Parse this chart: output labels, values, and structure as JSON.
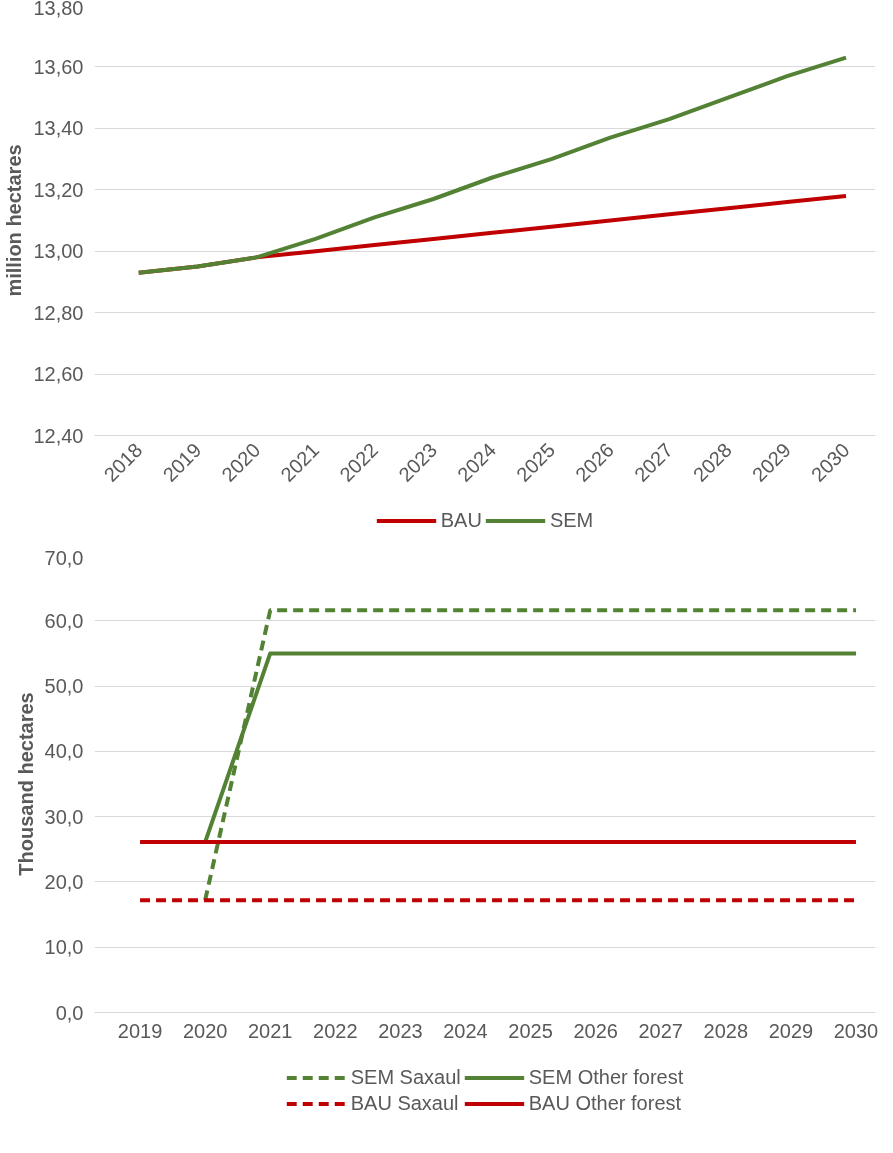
{
  "chart_data": [
    {
      "type": "line",
      "ylabel": "million hectares",
      "categories": [
        "2018",
        "2019",
        "2020",
        "2021",
        "2022",
        "2023",
        "2024",
        "2025",
        "2026",
        "2027",
        "2028",
        "2029",
        "2030"
      ],
      "series": [
        {
          "name": "BAU",
          "color": "#c00000",
          "values": [
            12.93,
            12.95,
            12.98,
            13.0,
            13.02,
            13.04,
            13.06,
            13.08,
            13.1,
            13.12,
            13.14,
            13.16,
            13.18
          ]
        },
        {
          "name": "SEM",
          "color": "#548235",
          "values": [
            12.93,
            12.95,
            12.98,
            13.04,
            13.11,
            13.17,
            13.24,
            13.3,
            13.37,
            13.43,
            13.5,
            13.57,
            13.63
          ]
        }
      ],
      "ylim": [
        12.4,
        13.8
      ],
      "yticks": [
        {
          "value": 12.4,
          "label": "12,40"
        },
        {
          "value": 12.6,
          "label": "12,60"
        },
        {
          "value": 12.8,
          "label": "12,80"
        },
        {
          "value": 13.0,
          "label": "13,00"
        },
        {
          "value": 13.2,
          "label": "13,20"
        },
        {
          "value": 13.4,
          "label": "13,40"
        },
        {
          "value": 13.6,
          "label": "13,60"
        },
        {
          "value": 13.8,
          "label": "13,80"
        }
      ],
      "grid": "y",
      "legend": "bottom",
      "line_style": "solid",
      "marker": "none"
    },
    {
      "type": "line",
      "ylabel": "Thousand hectares",
      "categories": [
        "2019",
        "2020",
        "2021",
        "2022",
        "2023",
        "2024",
        "2025",
        "2026",
        "2027",
        "2028",
        "2029",
        "2030"
      ],
      "series": [
        {
          "name": "SEM Saxaul",
          "color": "#548235",
          "line_style": "dashed",
          "values": [
            null,
            17.2,
            61.6,
            61.6,
            61.6,
            61.6,
            61.6,
            61.6,
            61.6,
            61.6,
            61.6,
            61.6
          ]
        },
        {
          "name": "SEM Other forest",
          "color": "#548235",
          "line_style": "solid",
          "values": [
            null,
            26.1,
            55.0,
            55.0,
            55.0,
            55.0,
            55.0,
            55.0,
            55.0,
            55.0,
            55.0,
            55.0
          ]
        },
        {
          "name": "BAU Saxaul",
          "color": "#c00000",
          "line_style": "dashed",
          "values": [
            17.2,
            17.2,
            17.2,
            17.2,
            17.2,
            17.2,
            17.2,
            17.2,
            17.2,
            17.2,
            17.2,
            17.2
          ]
        },
        {
          "name": "BAU Other forest",
          "color": "#c00000",
          "line_style": "solid",
          "values": [
            26.1,
            26.1,
            26.1,
            26.1,
            26.1,
            26.1,
            26.1,
            26.1,
            26.1,
            26.1,
            26.1,
            26.1
          ]
        }
      ],
      "ylim": [
        0,
        70
      ],
      "yticks": [
        {
          "value": 0,
          "label": "0,0"
        },
        {
          "value": 10,
          "label": "10,0"
        },
        {
          "value": 20,
          "label": "20,0"
        },
        {
          "value": 30,
          "label": "30,0"
        },
        {
          "value": 40,
          "label": "40,0"
        },
        {
          "value": 50,
          "label": "50,0"
        },
        {
          "value": 60,
          "label": "60,0"
        },
        {
          "value": 70,
          "label": "70,0"
        }
      ],
      "grid": "y",
      "legend": "bottom",
      "marker": "none"
    }
  ]
}
